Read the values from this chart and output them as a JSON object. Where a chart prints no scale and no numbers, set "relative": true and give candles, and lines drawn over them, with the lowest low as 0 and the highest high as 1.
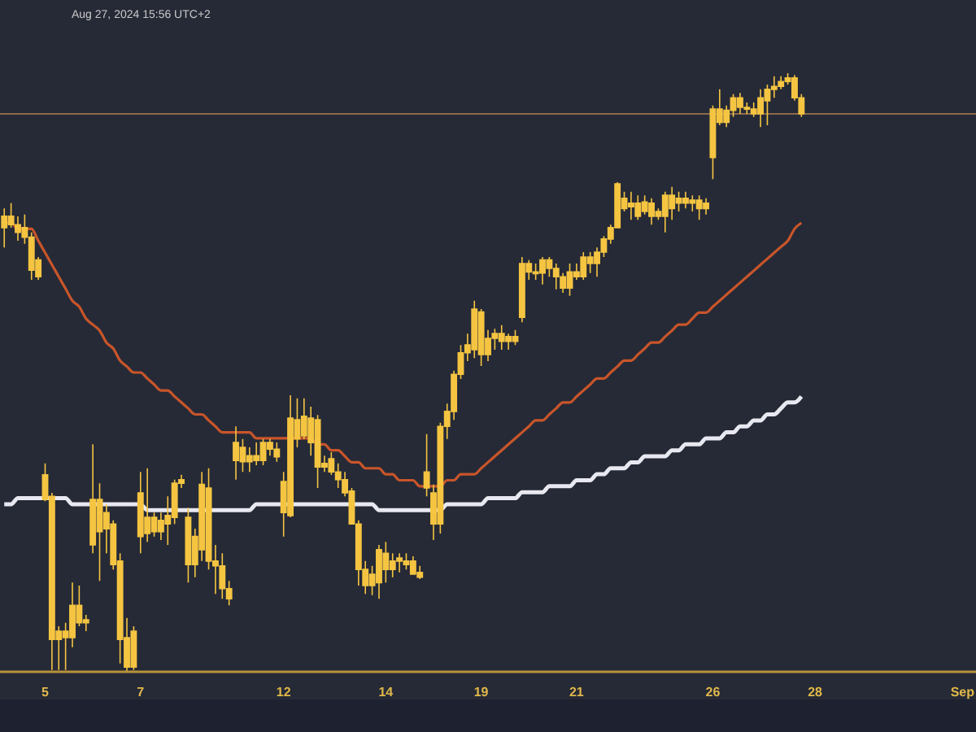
{
  "chart_data": {
    "type": "candlestick",
    "relative": true,
    "categories": [
      null,
      null,
      null,
      null,
      null,
      null,
      "5",
      null,
      null,
      null,
      null,
      null,
      null,
      null,
      null,
      null,
      null,
      null,
      null,
      null,
      "7",
      null,
      null,
      null,
      null,
      null,
      null,
      null,
      null,
      null,
      null,
      null,
      null,
      null,
      null,
      null,
      null,
      null,
      null,
      null,
      null,
      "12",
      null,
      null,
      null,
      null,
      null,
      null,
      null,
      null,
      null,
      null,
      null,
      null,
      null,
      null,
      "14",
      null,
      null,
      null,
      null,
      null,
      null,
      null,
      null,
      null,
      null,
      null,
      null,
      null,
      "19",
      null,
      null,
      null,
      null,
      null,
      null,
      null,
      null,
      null,
      null,
      null,
      null,
      null,
      "21",
      null,
      null,
      null,
      null,
      null,
      null,
      null,
      null,
      null,
      null,
      null,
      null,
      null,
      null,
      null,
      null,
      null,
      null,
      null,
      "26",
      null,
      null,
      null,
      null,
      null,
      null,
      null,
      null,
      null,
      null,
      null,
      null,
      null,
      null,
      "28",
      null,
      null,
      null,
      null,
      null,
      null,
      null,
      null,
      null,
      null,
      null,
      null,
      null,
      null,
      null,
      null,
      null,
      null,
      null,
      null,
      null,
      "Sep",
      null
    ],
    "grid": false,
    "legend": false,
    "annotations": [
      "Aug 27, 2024 15:56 UTC+2"
    ],
    "ref_lines": [
      {
        "axis": "y",
        "value": 0.932,
        "color": "#8a6a4a"
      }
    ],
    "series": [
      {
        "type": "line",
        "color": "#c8552a",
        "values": [
          0.75,
          0.75,
          0.74,
          0.74,
          0.74,
          0.72,
          0.7,
          0.68,
          0.66,
          0.64,
          0.62,
          0.61,
          0.59,
          0.58,
          0.57,
          0.55,
          0.54,
          0.52,
          0.51,
          0.5,
          0.5,
          0.49,
          0.48,
          0.47,
          0.47,
          0.46,
          0.45,
          0.44,
          0.43,
          0.43,
          0.42,
          0.41,
          0.4,
          0.4,
          0.4,
          0.4,
          0.4,
          0.39,
          0.39,
          0.39,
          0.39,
          0.39,
          0.39,
          0.39,
          0.39,
          0.39,
          0.38,
          0.38,
          0.37,
          0.37,
          0.36,
          0.35,
          0.35,
          0.34,
          0.34,
          0.34,
          0.33,
          0.33,
          0.32,
          0.32,
          0.32,
          0.31,
          0.31,
          0.31,
          0.31,
          0.32,
          0.32,
          0.33,
          0.33,
          0.33,
          0.34,
          0.35,
          0.36,
          0.37,
          0.38,
          0.39,
          0.4,
          0.41,
          0.42,
          0.42,
          0.43,
          0.44,
          0.45,
          0.45,
          0.46,
          0.47,
          0.48,
          0.49,
          0.49,
          0.5,
          0.51,
          0.52,
          0.52,
          0.53,
          0.54,
          0.55,
          0.55,
          0.56,
          0.57,
          0.58,
          0.58,
          0.59,
          0.6,
          0.6,
          0.61,
          0.62,
          0.63,
          0.64,
          0.65,
          0.66,
          0.67,
          0.68,
          0.69,
          0.7,
          0.71,
          0.72,
          0.74,
          0.75,
          null,
          null,
          null,
          null,
          null,
          null,
          null,
          null,
          null,
          null,
          null,
          null,
          null,
          null,
          null,
          null,
          null,
          null,
          null,
          null,
          null,
          null,
          null,
          null,
          null
        ]
      },
      {
        "type": "line",
        "color": "#e8e8f0",
        "values": [
          0.28,
          0.28,
          0.29,
          0.29,
          0.29,
          0.29,
          0.29,
          0.29,
          0.29,
          0.29,
          0.28,
          0.28,
          0.28,
          0.28,
          0.28,
          0.28,
          0.28,
          0.28,
          0.28,
          0.28,
          0.28,
          0.27,
          0.27,
          0.27,
          0.27,
          0.27,
          0.27,
          0.27,
          0.27,
          0.27,
          0.27,
          0.27,
          0.27,
          0.27,
          0.27,
          0.27,
          0.27,
          0.28,
          0.28,
          0.28,
          0.28,
          0.28,
          0.28,
          0.28,
          0.28,
          0.28,
          0.28,
          0.28,
          0.28,
          0.28,
          0.28,
          0.28,
          0.28,
          0.28,
          0.28,
          0.27,
          0.27,
          0.27,
          0.27,
          0.27,
          0.27,
          0.27,
          0.27,
          0.27,
          0.27,
          0.28,
          0.28,
          0.28,
          0.28,
          0.28,
          0.28,
          0.29,
          0.29,
          0.29,
          0.29,
          0.29,
          0.3,
          0.3,
          0.3,
          0.3,
          0.31,
          0.31,
          0.31,
          0.31,
          0.32,
          0.32,
          0.32,
          0.33,
          0.33,
          0.34,
          0.34,
          0.34,
          0.35,
          0.35,
          0.36,
          0.36,
          0.36,
          0.36,
          0.37,
          0.37,
          0.38,
          0.38,
          0.38,
          0.39,
          0.39,
          0.39,
          0.4,
          0.4,
          0.41,
          0.41,
          0.42,
          0.42,
          0.43,
          0.43,
          0.44,
          0.45,
          0.45,
          0.46,
          null,
          null,
          null,
          null,
          null,
          null,
          null,
          null,
          null,
          null,
          null,
          null,
          null,
          null,
          null,
          null,
          null,
          null,
          null,
          null,
          null,
          null,
          null,
          null,
          null
        ]
      },
      {
        "color": "#f5c542",
        "ohlc": [
          [
            0.742,
            0.774,
            0.709,
            0.761
          ],
          [
            0.761,
            0.783,
            0.742,
            0.747
          ],
          [
            0.747,
            0.761,
            0.72,
            0.734
          ],
          [
            0.742,
            0.764,
            0.715,
            0.726
          ],
          [
            0.726,
            0.734,
            0.655,
            0.671
          ],
          [
            0.688,
            0.693,
            0.655,
            0.66
          ],
          [
            0.329,
            0.348,
            0.285,
            0.288
          ],
          [
            0.293,
            0.299,
            0.003,
            0.054
          ],
          [
            0.054,
            0.076,
            0.003,
            0.068
          ],
          [
            0.068,
            0.082,
            0.003,
            0.057
          ],
          [
            0.057,
            0.149,
            0.041,
            0.111
          ],
          [
            0.111,
            0.144,
            0.076,
            0.082
          ],
          [
            0.082,
            0.095,
            0.068,
            0.087
          ],
          [
            0.212,
            0.38,
            0.198,
            0.288
          ],
          [
            0.288,
            0.315,
            0.152,
            0.234
          ],
          [
            0.239,
            0.28,
            0.198,
            0.266
          ],
          [
            0.247,
            0.253,
            0.171,
            0.179
          ],
          [
            0.185,
            0.198,
            0.014,
            0.054
          ],
          [
            0.057,
            0.09,
            0,
            0.008
          ],
          [
            0.008,
            0.076,
            0.003,
            0.068
          ],
          [
            0.226,
            0.334,
            0.198,
            0.299
          ],
          [
            0.231,
            0.34,
            0.217,
            0.258
          ],
          [
            0.258,
            0.266,
            0.226,
            0.234
          ],
          [
            0.234,
            0.266,
            0.22,
            0.253
          ],
          [
            0.247,
            0.293,
            0.212,
            0.261
          ],
          [
            0.258,
            0.321,
            0.247,
            0.315
          ],
          [
            0.315,
            0.329,
            0.307,
            0.321
          ],
          [
            0.258,
            0.274,
            0.149,
            0.179
          ],
          [
            0.179,
            0.239,
            0.158,
            0.226
          ],
          [
            0.204,
            0.334,
            0.185,
            0.313
          ],
          [
            0.307,
            0.34,
            0.171,
            0.185
          ],
          [
            0.185,
            0.212,
            0.13,
            0.177
          ],
          [
            0.177,
            0.198,
            0.122,
            0.139
          ],
          [
            0.139,
            0.152,
            0.111,
            0.122
          ],
          [
            0.353,
            0.41,
            0.321,
            0.383
          ],
          [
            0.375,
            0.389,
            0.334,
            0.351
          ],
          [
            0.351,
            0.375,
            0.334,
            0.361
          ],
          [
            0.361,
            0.383,
            0.345,
            0.353
          ],
          [
            0.353,
            0.389,
            0.345,
            0.383
          ],
          [
            0.383,
            0.389,
            0.361,
            0.372
          ],
          [
            0.372,
            0.383,
            0.351,
            0.359
          ],
          [
            0.266,
            0.334,
            0.226,
            0.318
          ],
          [
            0.261,
            0.462,
            0.258,
            0.424
          ],
          [
            0.421,
            0.457,
            0.375,
            0.389
          ],
          [
            0.394,
            0.457,
            0.389,
            0.427
          ],
          [
            0.424,
            0.443,
            0.361,
            0.383
          ],
          [
            0.421,
            0.429,
            0.307,
            0.342
          ],
          [
            0.342,
            0.361,
            0.334,
            0.348
          ],
          [
            0.356,
            0.367,
            0.329,
            0.334
          ],
          [
            0.334,
            0.348,
            0.307,
            0.321
          ],
          [
            0.321,
            0.334,
            0.293,
            0.299
          ],
          [
            0.302,
            0.307,
            0.247,
            0.247
          ],
          [
            0.247,
            0.253,
            0.144,
            0.171
          ],
          [
            0.171,
            0.185,
            0.13,
            0.144
          ],
          [
            0.144,
            0.177,
            0.128,
            0.163
          ],
          [
            0.149,
            0.212,
            0.122,
            0.204
          ],
          [
            0.198,
            0.217,
            0.149,
            0.171
          ],
          [
            0.171,
            0.198,
            0.158,
            0.185
          ],
          [
            0.185,
            0.198,
            0.166,
            0.19
          ],
          [
            0.185,
            0.198,
            0.171,
            0.179
          ],
          [
            0.185,
            0.193,
            0.163,
            0.163
          ],
          [
            0.166,
            0.177,
            0.155,
            0.158
          ],
          [
            0.307,
            0.397,
            0.293,
            0.334
          ],
          [
            0.299,
            0.313,
            0.22,
            0.247
          ],
          [
            0.247,
            0.416,
            0.231,
            0.41
          ],
          [
            0.41,
            0.448,
            0.389,
            0.435
          ],
          [
            0.435,
            0.503,
            0.421,
            0.497
          ],
          [
            0.497,
            0.546,
            0.489,
            0.533
          ],
          [
            0.533,
            0.565,
            0.519,
            0.546
          ],
          [
            0.538,
            0.62,
            0.524,
            0.606
          ],
          [
            0.601,
            0.606,
            0.511,
            0.53
          ],
          [
            0.53,
            0.571,
            0.519,
            0.557
          ],
          [
            0.557,
            0.573,
            0.538,
            0.565
          ],
          [
            0.565,
            0.579,
            0.538,
            0.552
          ],
          [
            0.552,
            0.565,
            0.538,
            0.56
          ],
          [
            0.56,
            0.571,
            0.546,
            0.552
          ],
          [
            0.592,
            0.693,
            0.584,
            0.682
          ],
          [
            0.682,
            0.688,
            0.655,
            0.668
          ],
          [
            0.668,
            0.682,
            0.655,
            0.666
          ],
          [
            0.666,
            0.693,
            0.647,
            0.688
          ],
          [
            0.688,
            0.693,
            0.66,
            0.674
          ],
          [
            0.674,
            0.682,
            0.639,
            0.66
          ],
          [
            0.66,
            0.666,
            0.633,
            0.641
          ],
          [
            0.641,
            0.682,
            0.628,
            0.668
          ],
          [
            0.668,
            0.682,
            0.655,
            0.66
          ],
          [
            0.66,
            0.701,
            0.655,
            0.693
          ],
          [
            0.693,
            0.701,
            0.666,
            0.682
          ],
          [
            0.682,
            0.709,
            0.66,
            0.701
          ],
          [
            0.701,
            0.728,
            0.693,
            0.723
          ],
          [
            0.723,
            0.747,
            0.715,
            0.742
          ],
          [
            0.742,
            0.818,
            0.742,
            0.815
          ],
          [
            0.791,
            0.802,
            0.769,
            0.774
          ],
          [
            0.777,
            0.802,
            0.755,
            0.783
          ],
          [
            0.783,
            0.796,
            0.755,
            0.761
          ],
          [
            0.769,
            0.796,
            0.764,
            0.785
          ],
          [
            0.783,
            0.791,
            0.747,
            0.761
          ],
          [
            0.761,
            0.774,
            0.755,
            0.769
          ],
          [
            0.761,
            0.802,
            0.734,
            0.796
          ],
          [
            0.796,
            0.81,
            0.755,
            0.774
          ],
          [
            0.783,
            0.802,
            0.769,
            0.791
          ],
          [
            0.791,
            0.802,
            0.774,
            0.783
          ],
          [
            0.783,
            0.796,
            0.769,
            0.788
          ],
          [
            0.788,
            0.796,
            0.755,
            0.774
          ],
          [
            0.774,
            0.791,
            0.764,
            0.783
          ],
          [
            0.859,
            0.946,
            0.823,
            0.94
          ],
          [
            0.94,
            0.973,
            0.913,
            0.918
          ],
          [
            0.918,
            0.946,
            0.91,
            0.938
          ],
          [
            0.938,
            0.965,
            0.927,
            0.959
          ],
          [
            0.959,
            0.967,
            0.932,
            0.943
          ],
          [
            0.943,
            0.951,
            0.932,
            0.94
          ],
          [
            0.94,
            0.951,
            0.927,
            0.932
          ],
          [
            0.932,
            0.973,
            0.91,
            0.959
          ],
          [
            0.954,
            0.981,
            0.913,
            0.973
          ],
          [
            0.973,
            0.995,
            0.959,
            0.978
          ],
          [
            0.978,
            0.995,
            0.973,
            0.986
          ],
          [
            0.986,
            1,
            0.981,
            0.992
          ],
          [
            0.992,
            0.997,
            0.954,
            0.959
          ],
          [
            0.959,
            0.965,
            0.927,
            0.932
          ],
          null,
          null,
          null,
          null,
          null,
          null,
          null,
          null,
          null,
          null,
          null,
          null,
          null,
          null,
          null,
          null,
          null,
          null,
          null,
          null,
          null,
          null,
          null,
          null,
          null
        ]
      }
    ]
  }
}
